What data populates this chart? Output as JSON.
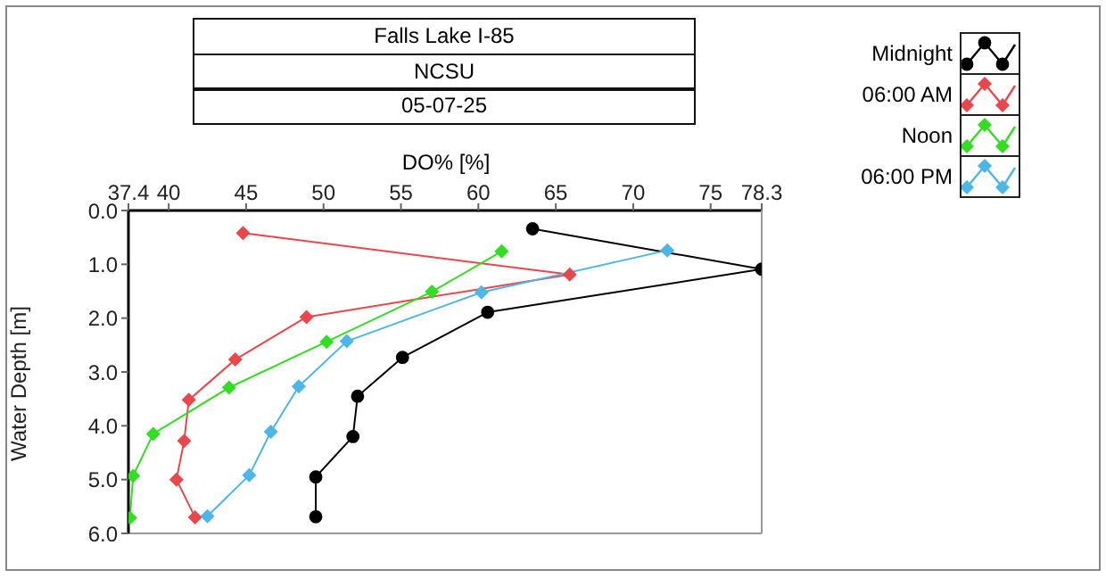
{
  "chart_data": {
    "type": "line",
    "title": "Falls Lake I-85",
    "subtitle": "NCSU",
    "annotations": [
      "05-07-25"
    ],
    "xlabel": "DO% [%]",
    "ylabel": "Water Depth [m]",
    "xlim": [
      37.4,
      78.3
    ],
    "xticks": [
      37.4,
      40,
      45,
      50,
      55,
      60,
      65,
      70,
      75,
      78.3
    ],
    "ylim": [
      6,
      0
    ],
    "yticks": [
      {
        "value": 0,
        "label": "0.0"
      },
      {
        "value": 1,
        "label": "1.0"
      },
      {
        "value": 2,
        "label": "2.0"
      },
      {
        "value": 3,
        "label": "3.0"
      },
      {
        "value": 4,
        "label": "4.0"
      },
      {
        "value": 5,
        "label": "5.0"
      },
      {
        "value": 6,
        "label": "6.0"
      }
    ],
    "grid": false,
    "legend": "top right",
    "line_style": "solid",
    "series": [
      {
        "name": "Midnight",
        "color": "#000000",
        "marker": "circle",
        "x": [
          63.5,
          78.3,
          60.6,
          55.1,
          52.2,
          51.9,
          49.5,
          49.5
        ],
        "values": [
          0.34,
          1.09,
          1.89,
          2.73,
          3.45,
          4.2,
          4.95,
          5.69
        ]
      },
      {
        "name": "06:00 AM",
        "color": "#e8474b",
        "marker": "diamond",
        "x": [
          44.8,
          65.9,
          48.9,
          44.3,
          41.3,
          41.0,
          40.5,
          41.7
        ],
        "values": [
          0.42,
          1.19,
          1.98,
          2.77,
          3.52,
          4.28,
          5.0,
          5.7
        ]
      },
      {
        "name": "Noon",
        "color": "#33dd22",
        "marker": "diamond",
        "x": [
          61.5,
          57.0,
          50.2,
          43.9,
          39.0,
          37.7,
          37.5
        ],
        "values": [
          0.76,
          1.51,
          2.44,
          3.29,
          4.15,
          4.93,
          5.71
        ]
      },
      {
        "name": "06:00 PM",
        "color": "#4cb6e8",
        "marker": "diamond",
        "x": [
          72.2,
          60.2,
          51.5,
          48.4,
          46.6,
          45.2,
          42.5
        ],
        "values": [
          0.74,
          1.52,
          2.43,
          3.27,
          4.11,
          4.92,
          5.68
        ]
      }
    ]
  }
}
